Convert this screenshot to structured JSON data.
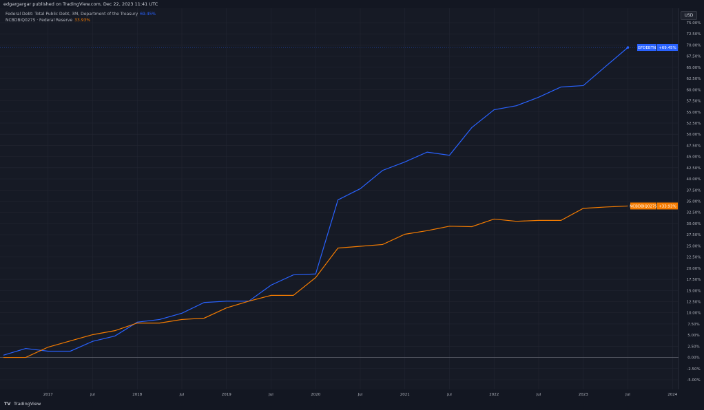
{
  "header": {
    "published": "edgargargar published on TradingView.com, Dec 22, 2023 11:41 UTC"
  },
  "legend": [
    {
      "label": "Federal Debt: Total Public Debt, 3M, Department of the Treasury",
      "value": "69.45%",
      "color": "#2962ff"
    },
    {
      "label": "NCBDBIQ027S · Federal Reserve",
      "value": "33.93%",
      "color": "#f57c00"
    }
  ],
  "currency": "USD",
  "footer": {
    "brand": "TradingView",
    "logo_text": "TV"
  },
  "colors": {
    "background": "#161a25",
    "grid": "#232632",
    "blue": "#2962ff",
    "orange": "#f57c00"
  },
  "chart_data": {
    "type": "line",
    "ylim": [
      -5,
      75
    ],
    "y_unit": "%",
    "grid": true,
    "y_ticks": [
      "75.00%",
      "72.50%",
      "70.00%",
      "67.50%",
      "65.00%",
      "62.50%",
      "60.00%",
      "57.50%",
      "55.00%",
      "52.50%",
      "50.00%",
      "47.50%",
      "45.00%",
      "42.50%",
      "40.00%",
      "37.50%",
      "35.00%",
      "32.50%",
      "30.00%",
      "27.50%",
      "25.00%",
      "22.50%",
      "20.00%",
      "17.50%",
      "15.00%",
      "12.50%",
      "10.00%",
      "7.50%",
      "5.00%",
      "2.50%",
      "0.00%",
      "-2.50%",
      "-5.00%"
    ],
    "x_ticks": [
      "2017",
      "Jul",
      "2018",
      "Jul",
      "2019",
      "Jul",
      "2020",
      "Jul",
      "2021",
      "Jul",
      "2022",
      "Jul",
      "2023",
      "Jul",
      "2024"
    ],
    "x": [
      "2016-07",
      "2016-10",
      "2017-01",
      "2017-04",
      "2017-07",
      "2017-10",
      "2018-01",
      "2018-04",
      "2018-07",
      "2018-10",
      "2019-01",
      "2019-04",
      "2019-07",
      "2019-10",
      "2020-01",
      "2020-04",
      "2020-07",
      "2020-10",
      "2021-01",
      "2021-04",
      "2021-07",
      "2021-10",
      "2022-01",
      "2022-04",
      "2022-07",
      "2022-10",
      "2023-01",
      "2023-04",
      "2023-07"
    ],
    "series": [
      {
        "name": "GFDEBTN",
        "label_value": "+69.45%",
        "color": "#2962ff",
        "values": [
          0.5,
          2.0,
          1.4,
          1.4,
          3.6,
          4.8,
          7.9,
          8.5,
          9.9,
          12.3,
          12.6,
          12.6,
          16.2,
          18.5,
          18.7,
          35.3,
          37.8,
          41.9,
          43.8,
          46.0,
          45.3,
          51.5,
          55.5,
          56.4,
          58.3,
          60.6,
          60.9,
          65.2,
          69.45
        ]
      },
      {
        "name": "NCBDBIQ027S",
        "label_value": "+33.93%",
        "color": "#f57c00",
        "values": [
          0,
          0,
          2.3,
          3.7,
          5.1,
          6.0,
          7.7,
          7.7,
          8.5,
          8.8,
          11.1,
          12.6,
          13.9,
          13.9,
          17.9,
          24.5,
          24.9,
          25.3,
          27.6,
          28.4,
          29.4,
          29.3,
          31.0,
          30.5,
          30.7,
          30.7,
          33.4,
          33.7,
          33.93
        ]
      }
    ]
  }
}
